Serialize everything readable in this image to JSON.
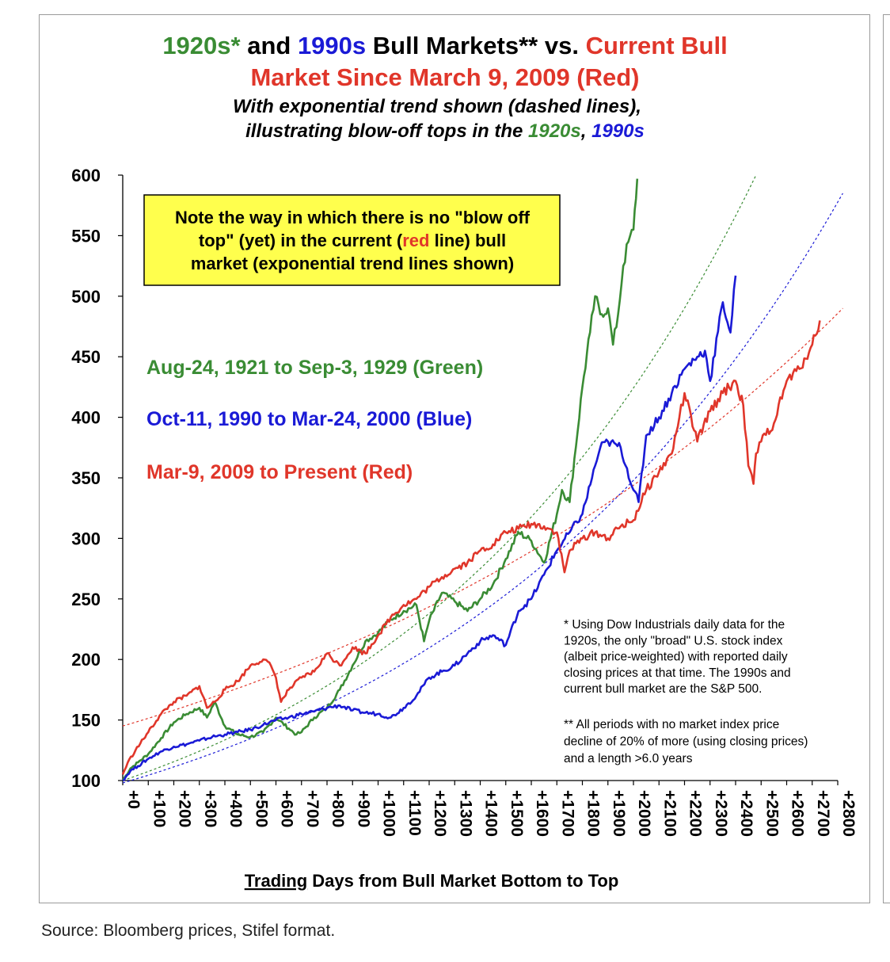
{
  "chart_data": {
    "type": "line",
    "title": {
      "line1": [
        {
          "text": "1920s*",
          "color": "#3a8c34"
        },
        {
          "text": " and ",
          "color": "#000000"
        },
        {
          "text": "1990s",
          "color": "#1a1ad6"
        },
        {
          "text": " Bull Markets** vs. ",
          "color": "#000000"
        },
        {
          "text": "Current Bull",
          "color": "#e0362a"
        }
      ],
      "line2": "Market Since March 9, 2009 (Red)",
      "subtitle1": "With exponential trend shown (dashed lines),",
      "subtitle2_parts": [
        {
          "text": "illustrating blow-off tops in the ",
          "color": "#000000"
        },
        {
          "text": "1920s",
          "color": "#3a8c34"
        },
        {
          "text": ", ",
          "color": "#000000"
        },
        {
          "text": "1990s",
          "color": "#1a1ad6"
        }
      ]
    },
    "xlabel_underlined": "Trading",
    "xlabel_rest": " Days from Bull Market Bottom to Top",
    "ylim": [
      100,
      600
    ],
    "xlim": [
      0,
      2800
    ],
    "yticks": [
      100,
      150,
      200,
      250,
      300,
      350,
      400,
      450,
      500,
      550,
      600
    ],
    "xticks": [
      {
        "value": 0,
        "label": "+0"
      },
      {
        "value": 100,
        "label": "+100"
      },
      {
        "value": 200,
        "label": "+200"
      },
      {
        "value": 300,
        "label": "+300"
      },
      {
        "value": 400,
        "label": "+400"
      },
      {
        "value": 500,
        "label": "+500"
      },
      {
        "value": 600,
        "label": "+600"
      },
      {
        "value": 700,
        "label": "+700"
      },
      {
        "value": 800,
        "label": "+800"
      },
      {
        "value": 900,
        "label": "+900"
      },
      {
        "value": 1000,
        "label": "+1000"
      },
      {
        "value": 1100,
        "label": "+1100"
      },
      {
        "value": 1200,
        "label": "+1200"
      },
      {
        "value": 1300,
        "label": "+1300"
      },
      {
        "value": 1400,
        "label": "+1400"
      },
      {
        "value": 1500,
        "label": "+1500"
      },
      {
        "value": 1600,
        "label": "+1600"
      },
      {
        "value": 1700,
        "label": "+1700"
      },
      {
        "value": 1800,
        "label": "+1800"
      },
      {
        "value": 1900,
        "label": "+1900"
      },
      {
        "value": 2000,
        "label": "+2000"
      },
      {
        "value": 2100,
        "label": "+2100"
      },
      {
        "value": 2200,
        "label": "+2200"
      },
      {
        "value": 2300,
        "label": "+2300"
      },
      {
        "value": 2400,
        "label": "+2400"
      },
      {
        "value": 2500,
        "label": "+2500"
      },
      {
        "value": 2600,
        "label": "+2600"
      },
      {
        "value": 2700,
        "label": "+2700"
      },
      {
        "value": 2800,
        "label": "+2800"
      }
    ],
    "note_box": {
      "line1": "Note the way in which there is no \"blow off",
      "line2_parts": [
        {
          "text": "top\" (yet) in the current (",
          "color": "#000000"
        },
        {
          "text": "red",
          "color": "#e0362a"
        },
        {
          "text": " line) bull",
          "color": "#000000"
        }
      ],
      "line3": "market (exponential trend lines shown)",
      "fill": "#ffff4d"
    },
    "legend": [
      {
        "text": "Aug-24, 1921 to Sep-3, 1929 (Green)",
        "color": "#3a8c34"
      },
      {
        "text": "Oct-11, 1990 to Mar-24, 2000 (Blue)",
        "color": "#1a1ad6"
      },
      {
        "text": "Mar-9, 2009 to Present (Red)",
        "color": "#e0362a"
      }
    ],
    "footnote1": [
      "* Using Dow Industrials daily data for the",
      "1920s, the only \"broad\"  U.S. stock index",
      "(albeit price-weighted) with reported daily",
      "closing prices at that time. The 1990s and",
      "current bull market are the S&P 500."
    ],
    "footnote2": [
      "** All periods with no market index price",
      "decline of 20% of more (using closing prices)",
      "and a length >6.0 years"
    ],
    "series": [
      {
        "color": "#3a8c34",
        "x": [
          0,
          30,
          60,
          100,
          150,
          200,
          250,
          300,
          330,
          360,
          400,
          450,
          500,
          550,
          600,
          650,
          680,
          700,
          750,
          800,
          850,
          900,
          950,
          1000,
          1050,
          1100,
          1150,
          1180,
          1200,
          1250,
          1300,
          1350,
          1400,
          1450,
          1500,
          1550,
          1600,
          1650,
          1700,
          1720,
          1750,
          1800,
          1830,
          1850,
          1870,
          1900,
          1920,
          1940,
          1960,
          1980,
          2000,
          2015
        ],
        "y": [
          100,
          110,
          115,
          122,
          135,
          148,
          155,
          160,
          152,
          165,
          145,
          138,
          136,
          140,
          152,
          143,
          138,
          140,
          152,
          160,
          175,
          195,
          215,
          222,
          233,
          240,
          245,
          215,
          232,
          255,
          248,
          240,
          250,
          262,
          283,
          305,
          298,
          280,
          320,
          340,
          330,
          425,
          470,
          500,
          485,
          490,
          460,
          485,
          525,
          545,
          555,
          597
        ]
      },
      {
        "color": "#1a1ad6",
        "x": [
          0,
          30,
          60,
          100,
          150,
          200,
          250,
          300,
          350,
          400,
          450,
          500,
          550,
          600,
          650,
          700,
          750,
          800,
          850,
          900,
          950,
          1000,
          1050,
          1100,
          1150,
          1200,
          1250,
          1300,
          1350,
          1400,
          1450,
          1500,
          1550,
          1600,
          1650,
          1700,
          1750,
          1800,
          1850,
          1870,
          1900,
          1950,
          2000,
          2020,
          2050,
          2100,
          2150,
          2200,
          2250,
          2280,
          2300,
          2350,
          2380,
          2400
        ],
        "y": [
          100,
          108,
          112,
          118,
          124,
          128,
          130,
          133,
          136,
          138,
          140,
          142,
          146,
          150,
          152,
          155,
          157,
          160,
          162,
          158,
          156,
          155,
          152,
          160,
          170,
          185,
          190,
          195,
          205,
          215,
          220,
          212,
          240,
          250,
          270,
          290,
          305,
          320,
          360,
          375,
          380,
          375,
          340,
          330,
          385,
          400,
          420,
          440,
          450,
          455,
          430,
          495,
          470,
          517
        ]
      },
      {
        "color": "#e0362a",
        "x": [
          0,
          20,
          50,
          100,
          150,
          200,
          250,
          300,
          330,
          360,
          400,
          450,
          500,
          550,
          580,
          600,
          620,
          650,
          700,
          750,
          800,
          850,
          900,
          950,
          1000,
          1050,
          1100,
          1150,
          1200,
          1250,
          1300,
          1350,
          1400,
          1450,
          1500,
          1550,
          1600,
          1650,
          1700,
          1730,
          1750,
          1800,
          1850,
          1900,
          1950,
          2000,
          2050,
          2100,
          2150,
          2180,
          2200,
          2250,
          2300,
          2350,
          2400,
          2430,
          2450,
          2470,
          2480,
          2500,
          2550,
          2600,
          2650,
          2700,
          2730
        ],
        "y": [
          105,
          115,
          125,
          140,
          155,
          165,
          170,
          178,
          160,
          165,
          175,
          182,
          195,
          200,
          195,
          185,
          165,
          175,
          185,
          190,
          205,
          195,
          210,
          205,
          220,
          235,
          245,
          250,
          260,
          268,
          275,
          280,
          290,
          295,
          305,
          308,
          312,
          310,
          305,
          272,
          290,
          300,
          305,
          300,
          310,
          315,
          340,
          355,
          370,
          400,
          420,
          380,
          405,
          420,
          430,
          410,
          360,
          345,
          370,
          380,
          395,
          430,
          440,
          460,
          480
        ]
      }
    ],
    "trend_lines": [
      {
        "color": "#3a8c34",
        "x_start": 0,
        "y_start": 100,
        "x_end": 2480,
        "y_end": 600
      },
      {
        "color": "#1a1ad6",
        "x_start": 0,
        "y_start": 98,
        "x_end": 2820,
        "y_end": 585
      },
      {
        "color": "#e0362a",
        "x_start": 0,
        "y_start": 145,
        "x_end": 2820,
        "y_end": 490
      }
    ]
  },
  "source": "Source: Bloomberg prices, Stifel format."
}
